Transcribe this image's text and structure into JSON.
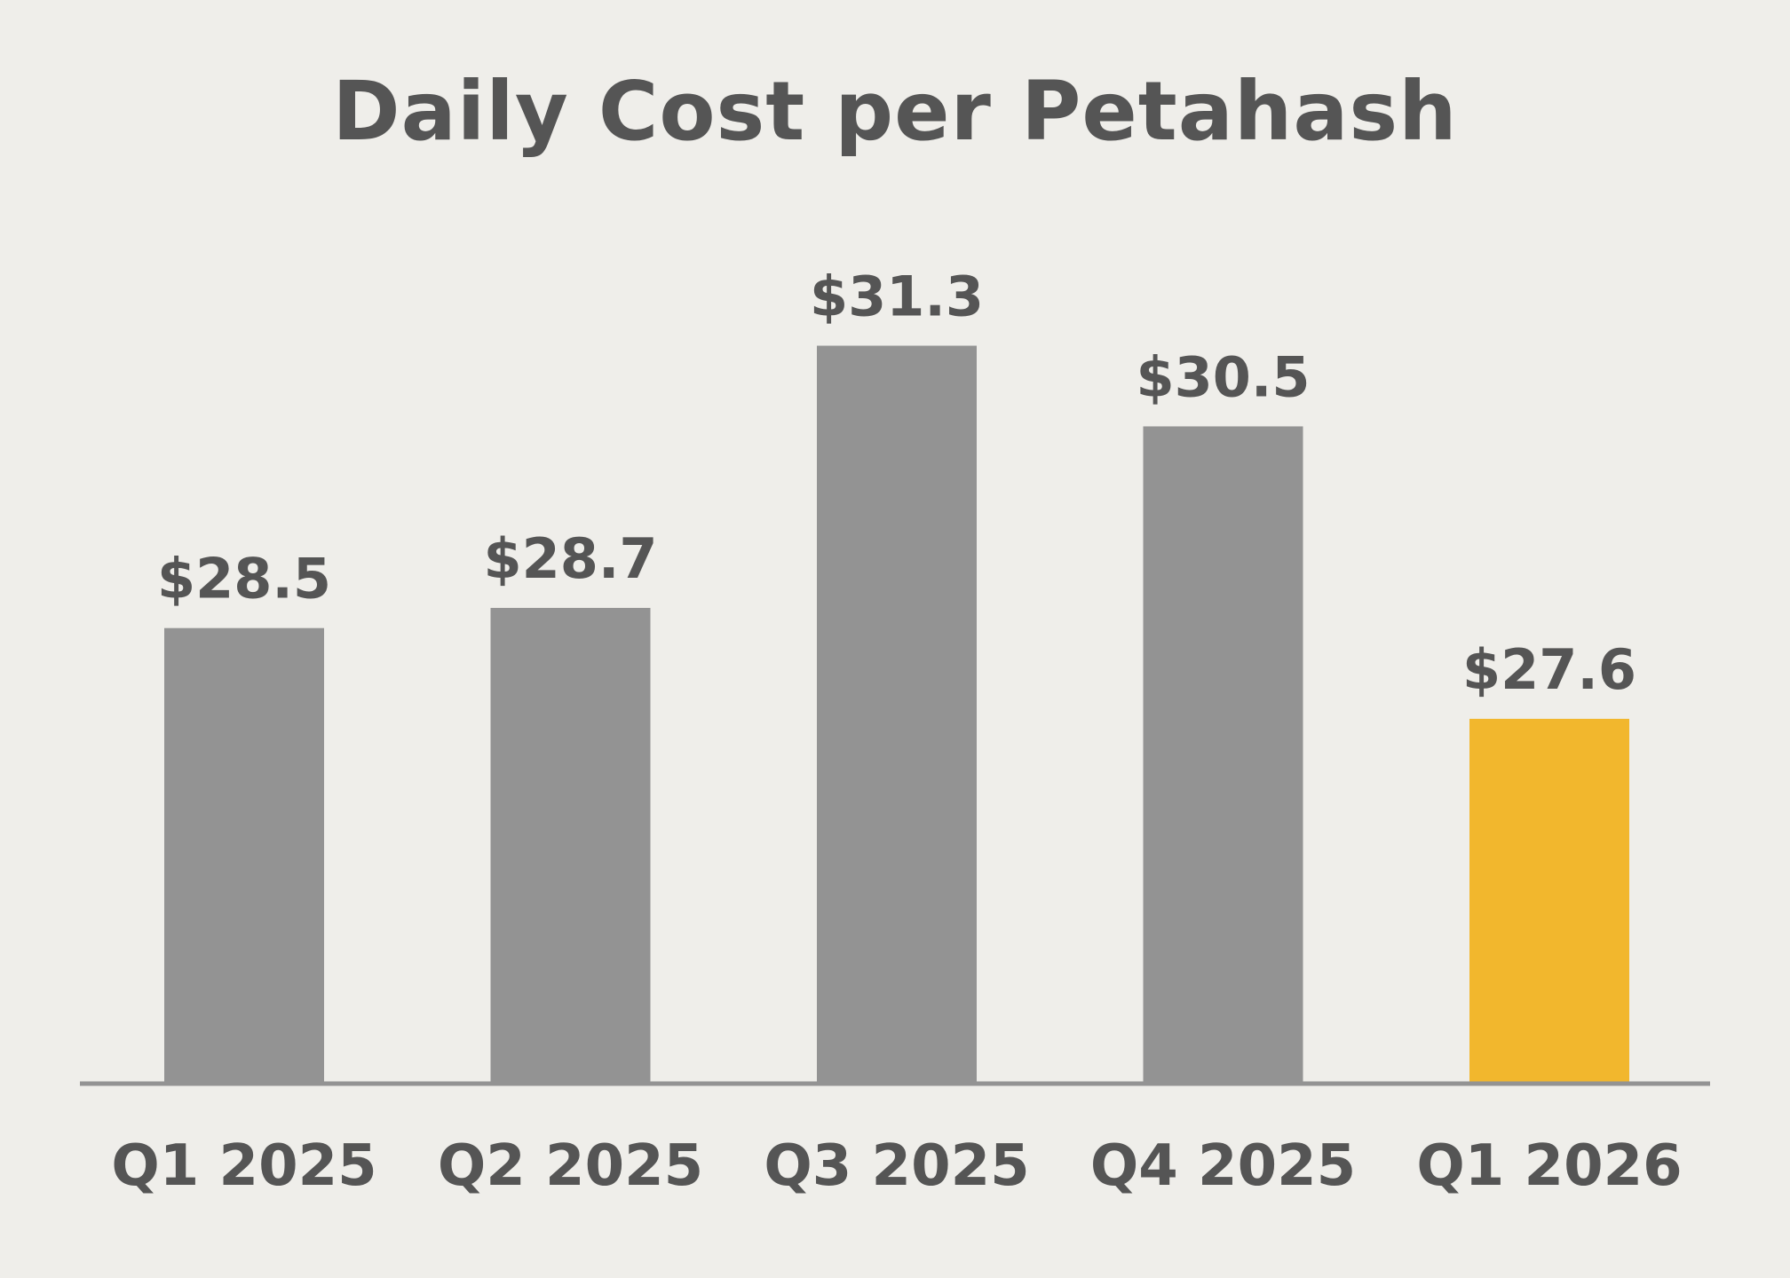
{
  "chart_data": {
    "type": "bar",
    "title": "Daily Cost per Petahash",
    "xlabel": "",
    "ylabel": "",
    "categories": [
      "Q1 2025",
      "Q2 2025",
      "Q3 2025",
      "Q4 2025",
      "Q1 2026"
    ],
    "values": [
      28.5,
      28.7,
      31.3,
      30.5,
      27.6
    ],
    "data_labels": [
      "$28.5",
      "$28.7",
      "$31.3",
      "$30.5",
      "$27.6"
    ],
    "ylim": [
      24.0,
      32.0
    ],
    "grid": false,
    "legend": "none",
    "colors": {
      "default_bar": "#939393",
      "highlight_bar": "#f2b72d",
      "axis_line": "#939393",
      "text": "#555555",
      "background": "#efeeea"
    },
    "highlight_index": 4
  }
}
